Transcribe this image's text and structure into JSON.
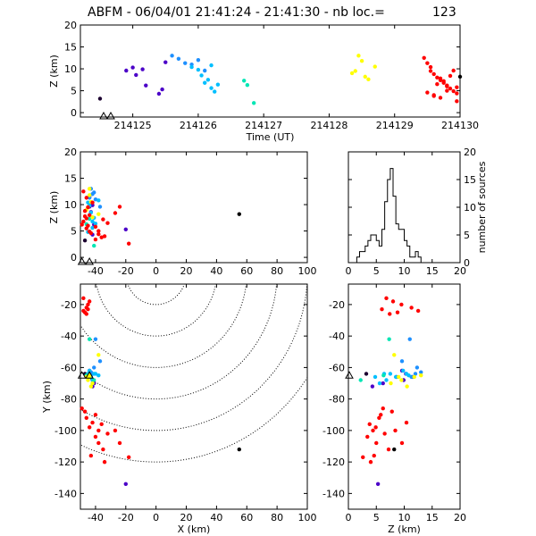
{
  "chart_data": {
    "type": "scatter",
    "title": "ABFM - 06/04/01 21:41:24 - 21:41:30 - nb loc.=",
    "count": "123",
    "panels": {
      "time_height": {
        "xlabel": "Time (UT)",
        "ylabel": "Z (km)",
        "xlim": [
          214124.2,
          214130
        ],
        "ylim": [
          -1,
          20
        ],
        "xticks": [
          214125,
          214126,
          214127,
          214128,
          214129,
          214130
        ],
        "yticks": [
          0,
          5,
          10,
          15,
          20
        ]
      },
      "x_height": {
        "ylabel": "Z (km)",
        "xlim": [
          -50,
          100
        ],
        "ylim": [
          -1,
          20
        ],
        "xticks": [
          -40,
          -20,
          0,
          20,
          40,
          60,
          80,
          100
        ],
        "yticks": [
          0,
          5,
          10,
          15,
          20
        ]
      },
      "histogram": {
        "ylabel": "number of sources",
        "xlim": [
          0,
          20
        ],
        "ylim": [
          0,
          20
        ],
        "xticks": [
          0,
          5,
          10,
          15,
          20
        ],
        "yticks": [
          0,
          5,
          10,
          15,
          20
        ],
        "bin_width": 0.5,
        "bins": [
          [
            1.5,
            1
          ],
          [
            2,
            2
          ],
          [
            2.5,
            2
          ],
          [
            3,
            3
          ],
          [
            3.5,
            4
          ],
          [
            4,
            5
          ],
          [
            4.5,
            5
          ],
          [
            5,
            4
          ],
          [
            5.5,
            3
          ],
          [
            6,
            6
          ],
          [
            6.5,
            11
          ],
          [
            7,
            15
          ],
          [
            7.5,
            17
          ],
          [
            8,
            12
          ],
          [
            8.5,
            7
          ],
          [
            9,
            6
          ],
          [
            9.5,
            6
          ],
          [
            10,
            4
          ],
          [
            10.5,
            3
          ],
          [
            11,
            1
          ],
          [
            11.5,
            1
          ],
          [
            12,
            2
          ],
          [
            12.5,
            1
          ]
        ]
      },
      "plan": {
        "xlabel": "X (km)",
        "ylabel": "Y (km)",
        "xlim": [
          -50,
          100
        ],
        "ylim": [
          -150,
          -7
        ],
        "xticks": [
          -40,
          -20,
          0,
          20,
          40,
          60,
          80,
          100
        ],
        "yticks": [
          -20,
          -40,
          -60,
          -80,
          -100,
          -120,
          -140
        ],
        "range_rings_km": [
          20,
          40,
          60,
          80,
          100,
          120
        ],
        "ring_center": [
          0,
          0
        ]
      },
      "z_y": {
        "xlabel": "Z (km)",
        "xlim": [
          0,
          20
        ],
        "ylim": [
          -150,
          -7
        ],
        "xticks": [
          0,
          5,
          10,
          15,
          20
        ],
        "yticks": [
          -20,
          -40,
          -60,
          -80,
          -100,
          -120,
          -140
        ]
      }
    },
    "stations": [
      [
        -49,
        -65
      ],
      [
        -44,
        -65
      ]
    ],
    "series": [
      {
        "color": "#1c0030",
        "points": [
          {
            "t": 214124.5,
            "x": -47,
            "y": -64,
            "z": 3.2
          }
        ]
      },
      {
        "color": "#4b00c8",
        "points": [
          {
            "t": 214124.9,
            "x": -44,
            "y": -62,
            "z": 9.6
          },
          {
            "t": 214125.0,
            "x": -43,
            "y": -64,
            "z": 10.3
          },
          {
            "t": 214125.05,
            "x": -43,
            "y": -66,
            "z": 8.6
          },
          {
            "t": 214125.15,
            "x": -42,
            "y": -68,
            "z": 9.9
          },
          {
            "t": 214125.2,
            "x": -41,
            "y": -70,
            "z": 6.2
          },
          {
            "t": 214125.4,
            "x": -42,
            "y": -72,
            "z": 4.3
          },
          {
            "t": 214125.45,
            "x": -20,
            "y": -134,
            "z": 5.3
          },
          {
            "t": 214125.5,
            "x": -44,
            "y": -66,
            "z": 11.5
          }
        ]
      },
      {
        "color": "#1e90ff",
        "points": [
          {
            "t": 214125.6,
            "x": -43,
            "y": -63,
            "z": 13.0
          },
          {
            "t": 214125.7,
            "x": -41,
            "y": -60,
            "z": 12.3
          },
          {
            "t": 214125.8,
            "x": -44,
            "y": -66,
            "z": 11.3
          },
          {
            "t": 214125.9,
            "x": -40,
            "y": -42,
            "z": 11.0
          },
          {
            "t": 214126.0,
            "x": -42,
            "y": -64,
            "z": 12.0
          },
          {
            "t": 214126.1,
            "x": -37,
            "y": -56,
            "z": 9.6
          }
        ]
      },
      {
        "color": "#00bfff",
        "points": [
          {
            "t": 214125.9,
            "x": -45,
            "y": -64,
            "z": 10.4
          },
          {
            "t": 214126.0,
            "x": -44,
            "y": -62,
            "z": 9.8
          },
          {
            "t": 214126.05,
            "x": -43,
            "y": -66,
            "z": 8.5
          },
          {
            "t": 214126.1,
            "x": -42,
            "y": -68,
            "z": 6.8
          },
          {
            "t": 214126.15,
            "x": -41,
            "y": -64,
            "z": 7.5
          },
          {
            "t": 214126.2,
            "x": -42,
            "y": -70,
            "z": 5.6
          },
          {
            "t": 214126.25,
            "x": -45,
            "y": -66,
            "z": 4.8
          },
          {
            "t": 214126.3,
            "x": -40,
            "y": -64,
            "z": 6.4
          },
          {
            "t": 214126.2,
            "x": -38,
            "y": -65,
            "z": 10.8
          }
        ]
      },
      {
        "color": "#00e6b4",
        "points": [
          {
            "t": 214126.7,
            "x": -44,
            "y": -42,
            "z": 7.3
          },
          {
            "t": 214126.75,
            "x": -46,
            "y": -65,
            "z": 6.3
          },
          {
            "t": 214126.85,
            "x": -41,
            "y": -68,
            "z": 2.2
          }
        ]
      },
      {
        "color": "#ffff00",
        "points": [
          {
            "t": 214128.35,
            "x": -46,
            "y": -66,
            "z": 9.0
          },
          {
            "t": 214128.4,
            "x": -45,
            "y": -68,
            "z": 9.5
          },
          {
            "t": 214128.45,
            "x": -44,
            "y": -65,
            "z": 13.0
          },
          {
            "t": 214128.5,
            "x": -44,
            "y": -66,
            "z": 11.8
          },
          {
            "t": 214128.55,
            "x": -38,
            "y": -52,
            "z": 8.2
          },
          {
            "t": 214128.6,
            "x": -42,
            "y": -70,
            "z": 7.6
          },
          {
            "t": 214128.7,
            "x": -43,
            "y": -72,
            "z": 10.5
          }
        ]
      },
      {
        "color": "#ff0000",
        "points": [
          {
            "t": 214129.45,
            "x": -48,
            "y": -24,
            "z": 12.5
          },
          {
            "t": 214129.5,
            "x": -46,
            "y": -22,
            "z": 11.3
          },
          {
            "t": 214129.55,
            "x": -45,
            "y": -20,
            "z": 9.5
          },
          {
            "t": 214129.6,
            "x": -47,
            "y": -25,
            "z": 8.8
          },
          {
            "t": 214129.65,
            "x": -44,
            "y": -18,
            "z": 8.0
          },
          {
            "t": 214129.7,
            "x": -46,
            "y": -26,
            "z": 7.4
          },
          {
            "t": 214129.75,
            "x": -48,
            "y": -16,
            "z": 6.8
          },
          {
            "t": 214129.8,
            "x": -45,
            "y": -23,
            "z": 6.0
          },
          {
            "t": 214129.85,
            "x": -46,
            "y": -92,
            "z": 5.5
          },
          {
            "t": 214129.9,
            "x": -44,
            "y": -98,
            "z": 4.9
          },
          {
            "t": 214129.95,
            "x": -38,
            "y": -100,
            "z": 4.4
          },
          {
            "t": 214129.6,
            "x": -36,
            "y": -96,
            "z": 3.8
          },
          {
            "t": 214129.7,
            "x": -40,
            "y": -104,
            "z": 3.4
          },
          {
            "t": 214129.8,
            "x": -38,
            "y": -108,
            "z": 5.0
          },
          {
            "t": 214129.65,
            "x": -32,
            "y": -102,
            "z": 6.5
          },
          {
            "t": 214129.75,
            "x": -35,
            "y": -112,
            "z": 7.2
          },
          {
            "t": 214129.9,
            "x": -24,
            "y": -108,
            "z": 9.6
          },
          {
            "t": 214129.55,
            "x": -42,
            "y": -95,
            "z": 10.4
          },
          {
            "t": 214129.85,
            "x": -27,
            "y": -100,
            "z": 8.4
          },
          {
            "t": 214129.95,
            "x": -18,
            "y": -117,
            "z": 2.6
          },
          {
            "t": 214129.5,
            "x": -43,
            "y": -116,
            "z": 4.6
          },
          {
            "t": 214129.7,
            "x": -47,
            "y": -88,
            "z": 7.8
          },
          {
            "t": 214129.8,
            "x": -49,
            "y": -86,
            "z": 6.2
          },
          {
            "t": 214129.95,
            "x": -40,
            "y": -90,
            "z": 5.8
          },
          {
            "t": 214129.6,
            "x": -34,
            "y": -120,
            "z": 4.0
          }
        ]
      },
      {
        "color": "#000000",
        "points": [
          {
            "t": 214130.0,
            "x": 55,
            "y": -112,
            "z": 8.2
          }
        ]
      }
    ]
  }
}
